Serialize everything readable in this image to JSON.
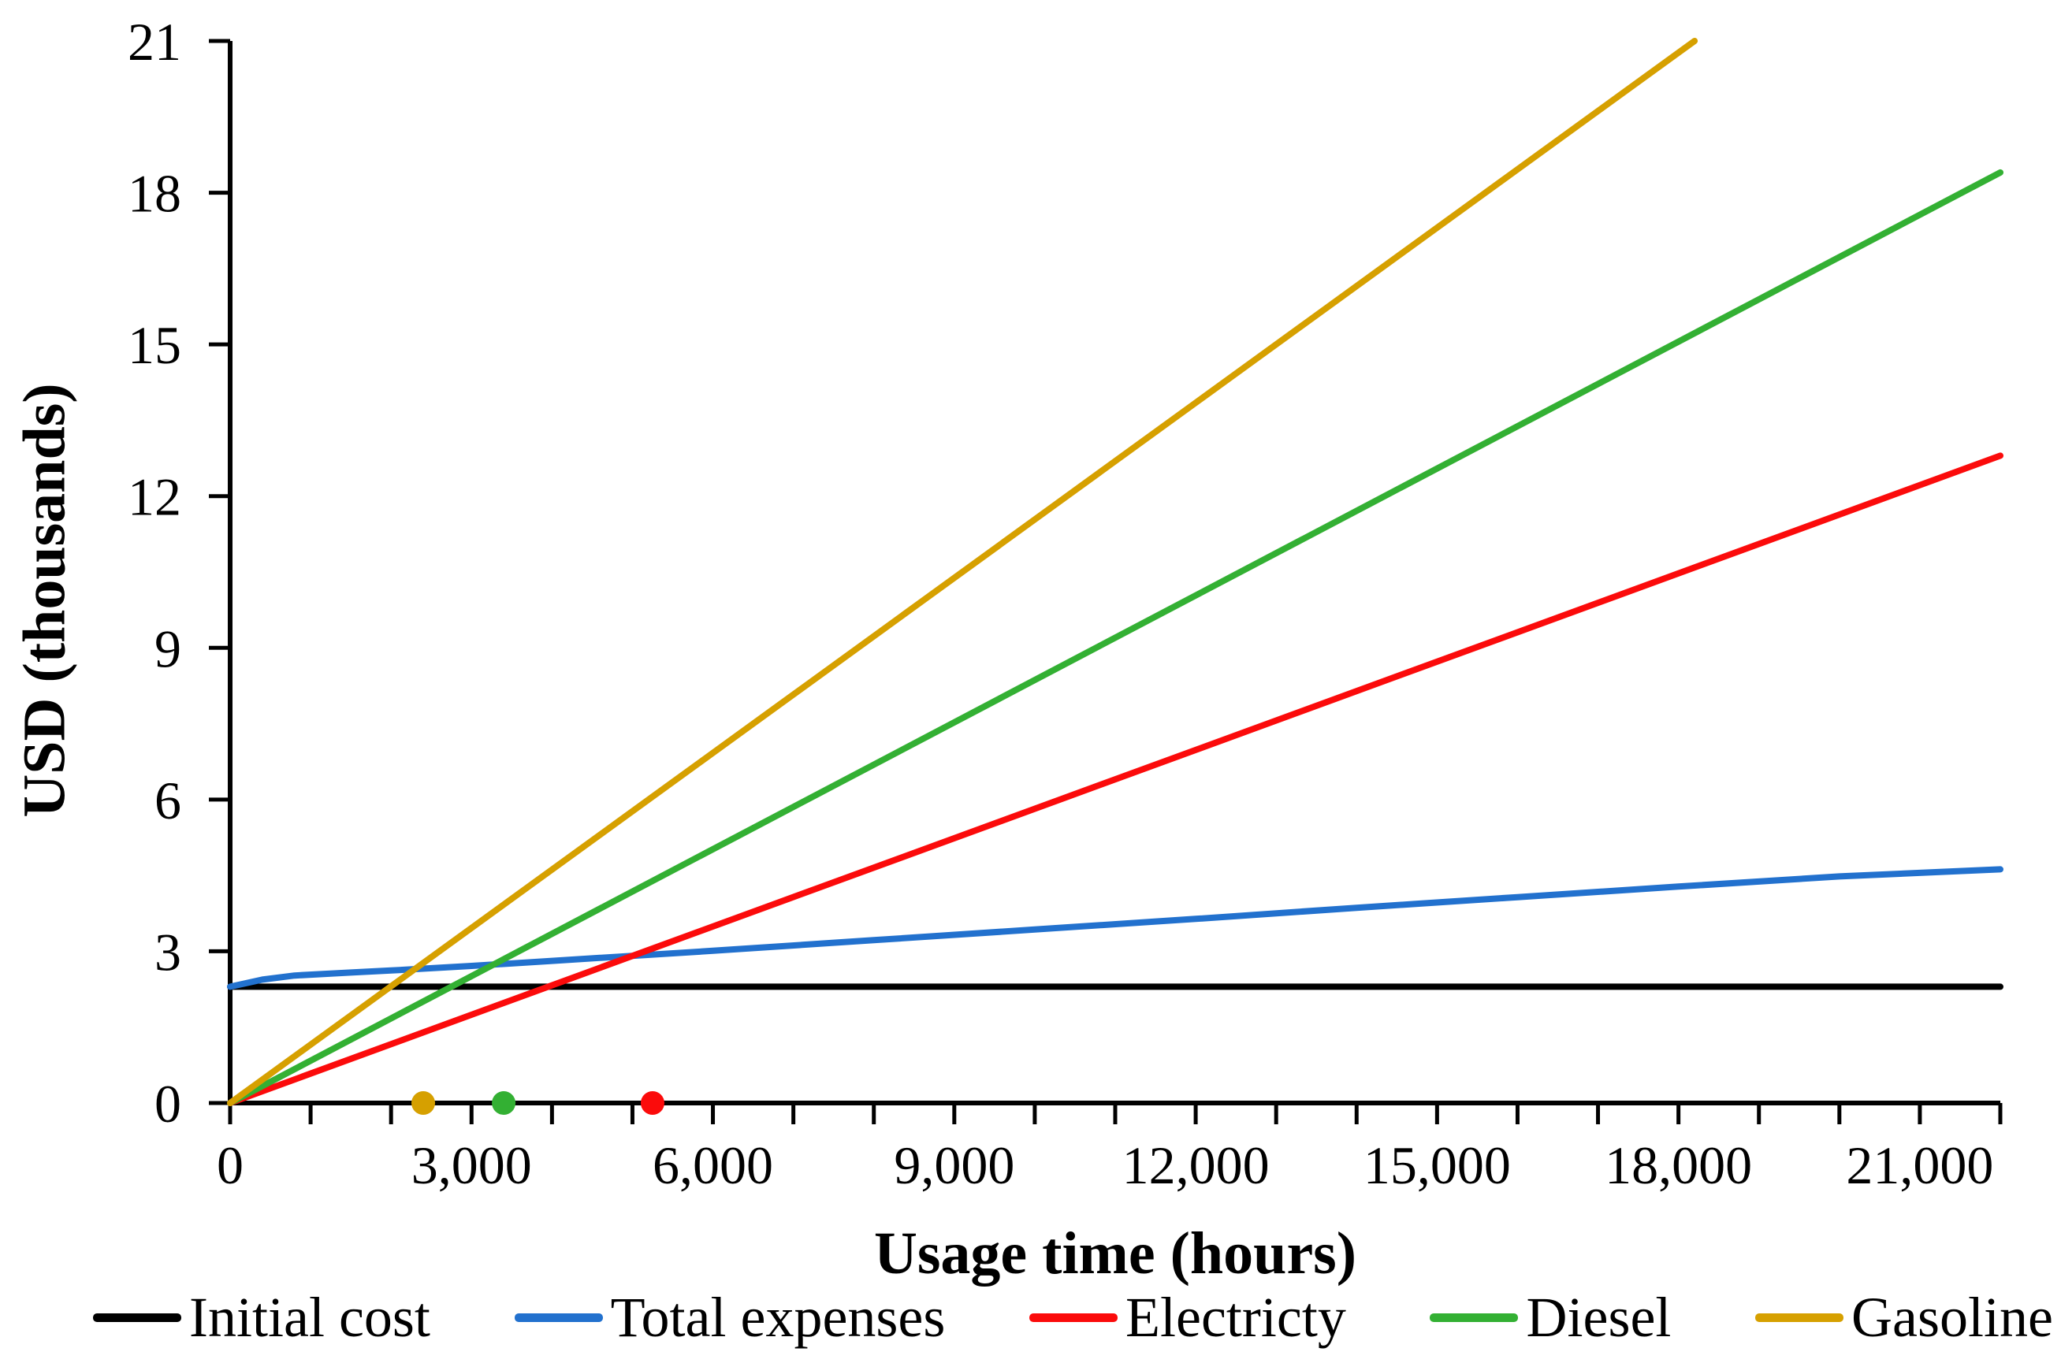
{
  "figure": {
    "background_color": "#FFFFFF",
    "axis_color": "#000000"
  },
  "chart_data": {
    "type": "line",
    "title": "",
    "xlabel": "Usage time (hours)",
    "ylabel": "USD (thousands)",
    "xlim": [
      0,
      22000
    ],
    "ylim": [
      0,
      21
    ],
    "grid": false,
    "legend_position": "bottom",
    "x_minor_tick_step": 1000,
    "x_major_ticks": [
      0,
      3000,
      6000,
      9000,
      12000,
      15000,
      18000,
      21000
    ],
    "x_tick_labels": [
      "0",
      "3,000",
      "6,000",
      "9,000",
      "12,000",
      "15,000",
      "18,000",
      "21,000"
    ],
    "y_ticks": [
      0,
      3,
      6,
      9,
      12,
      15,
      18,
      21
    ],
    "y_tick_labels": [
      "0",
      "3",
      "6",
      "9",
      "12",
      "15",
      "18",
      "21"
    ],
    "series": [
      {
        "name": "Initial cost",
        "color": "#000000",
        "points": [
          [
            0,
            2.3
          ],
          [
            22000,
            2.3
          ]
        ]
      },
      {
        "name": "Total expenses",
        "color": "#2271CE",
        "points": [
          [
            0,
            2.3
          ],
          [
            400,
            2.44
          ],
          [
            800,
            2.52
          ],
          [
            1500,
            2.58
          ],
          [
            2000,
            2.62
          ],
          [
            3000,
            2.71
          ],
          [
            4000,
            2.81
          ],
          [
            6000,
            3.01
          ],
          [
            8000,
            3.22
          ],
          [
            10000,
            3.43
          ],
          [
            12000,
            3.64
          ],
          [
            14000,
            3.86
          ],
          [
            16000,
            4.07
          ],
          [
            18000,
            4.28
          ],
          [
            20000,
            4.48
          ],
          [
            22000,
            4.62
          ]
        ]
      },
      {
        "name": "Electricty",
        "color": "#FB0B0B",
        "points": [
          [
            0,
            0
          ],
          [
            22000,
            12.8
          ]
        ]
      },
      {
        "name": "Diesel",
        "color": "#33B033",
        "points": [
          [
            0,
            0
          ],
          [
            22000,
            18.4
          ]
        ]
      },
      {
        "name": "Gasoline",
        "color": "#D6A000",
        "points": [
          [
            0,
            0
          ],
          [
            18200,
            21
          ]
        ]
      }
    ],
    "breakeven_markers": [
      {
        "series": "Gasoline",
        "x": 2400,
        "y": 0
      },
      {
        "series": "Diesel",
        "x": 3400,
        "y": 0
      },
      {
        "series": "Electricty",
        "x": 5250,
        "y": 0
      }
    ]
  }
}
